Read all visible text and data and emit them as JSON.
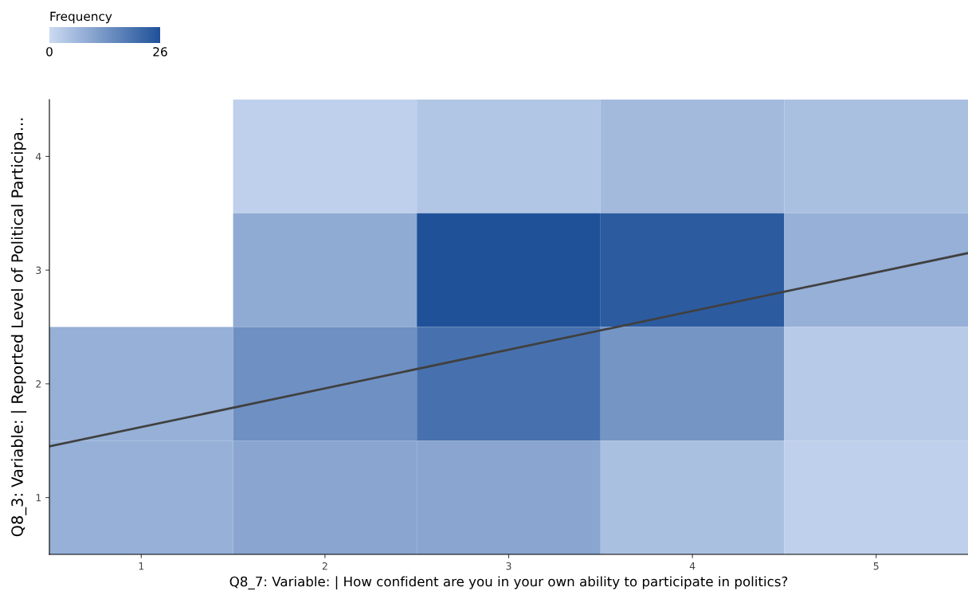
{
  "chart_data": {
    "type": "heatmap",
    "xlabel": "Q8_7: Variable: | How confident are you in your own ability to participate in politics?",
    "ylabel": "Q8_3: Variable: | Reported Level of Political Participa...",
    "clabel": "Frequency",
    "x": [
      1,
      2,
      3,
      4,
      5
    ],
    "cells": [
      [
        null,
        2,
        4,
        6,
        5
      ],
      [
        null,
        9,
        26,
        24,
        8
      ],
      [
        8,
        14,
        20,
        13,
        3
      ],
      [
        8,
        10,
        10,
        5,
        2
      ]
    ],
    "colors": [
      "#cbdaf2",
      "#1f5199"
    ],
    "clim": [
      0,
      26
    ],
    "cticks": [
      0,
      26
    ],
    "xlim": [
      0.5,
      5.5
    ],
    "ylim": [
      0.5,
      4.5
    ],
    "xticks": [
      1,
      2,
      3,
      4,
      5
    ],
    "yticks": [
      1,
      2,
      3,
      4
    ],
    "grid": false,
    "series": [
      {
        "type": "line",
        "x": [
          0.5,
          5.5
        ],
        "values": [
          1.45,
          3.15
        ],
        "color": "#404040"
      }
    ]
  }
}
